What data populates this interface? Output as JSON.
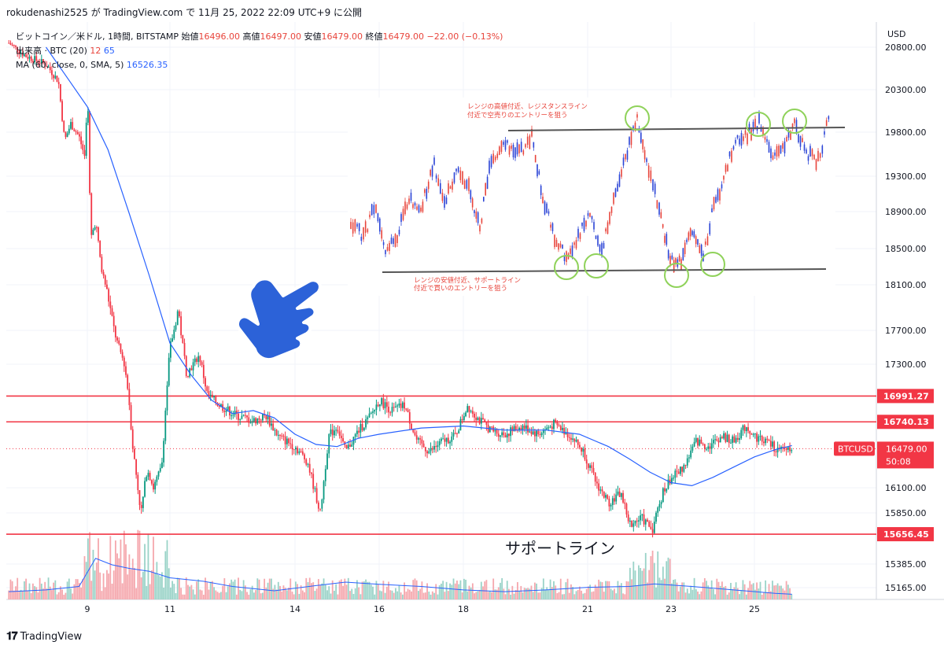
{
  "topbar": {
    "text": "rokudenashi2525 が TradingView.com で 11月 25, 2022 22:09 UTC+9 に公開"
  },
  "legend": {
    "line1": {
      "symbol": "ビットコイン／米ドル, 1時間, BITSTAMP",
      "open_label": "始値",
      "open": "16496.00",
      "high_label": "高値",
      "high": "16497.00",
      "low_label": "安値",
      "low": "16479.00",
      "close_label": "終値",
      "close": "16479.00",
      "change": "−22.00 (−0.13%)"
    },
    "line2": {
      "label": "出来高 · BTC (20)",
      "v1": "12",
      "v2": "65"
    },
    "line3": {
      "label": "MA (60, close, 0, SMA, 5)",
      "value": "16526.35"
    }
  },
  "footer": {
    "brand": "TradingView"
  },
  "chart_data": {
    "type": "candlestick",
    "symbol": "BTCUSD",
    "currency": "USD",
    "ylim": [
      15050,
      21000
    ],
    "y_ticks": [
      20800,
      20300,
      19800,
      19300,
      18900,
      18500,
      18100,
      17700,
      17300,
      16100,
      15850,
      15385,
      15165
    ],
    "x_ticks": [
      {
        "label": "9",
        "day": 9
      },
      {
        "label": "11",
        "day": 11
      },
      {
        "label": "14",
        "day": 14
      },
      {
        "label": "16",
        "day": 16
      },
      {
        "label": "18",
        "day": 18
      },
      {
        "label": "21",
        "day": 21
      },
      {
        "label": "23",
        "day": 23
      },
      {
        "label": "25",
        "day": 25
      }
    ],
    "horizontal_lines": [
      {
        "value": 16991.27,
        "label": "16991.27",
        "color": "#f23645"
      },
      {
        "value": 16740.13,
        "label": "16740.13",
        "color": "#f23645"
      },
      {
        "value": 15656.45,
        "label": "15656.45",
        "color": "#f23645"
      }
    ],
    "current_price": {
      "symbol": "BTCUSD",
      "price": "16479.00",
      "countdown": "50:08",
      "value": 16479
    },
    "annotation_text": "サポートライン",
    "price_path": [
      [
        7.1,
        20850
      ],
      [
        7.5,
        20700
      ],
      [
        8.0,
        20600
      ],
      [
        8.3,
        20400
      ],
      [
        8.45,
        19700
      ],
      [
        8.6,
        19900
      ],
      [
        8.8,
        19750
      ],
      [
        8.95,
        19500
      ],
      [
        9.0,
        20400
      ],
      [
        9.08,
        18600
      ],
      [
        9.2,
        18800
      ],
      [
        9.35,
        18250
      ],
      [
        9.5,
        18000
      ],
      [
        9.7,
        17600
      ],
      [
        9.9,
        17300
      ],
      [
        10.0,
        17000
      ],
      [
        10.1,
        16500
      ],
      [
        10.3,
        15850
      ],
      [
        10.45,
        16300
      ],
      [
        10.6,
        16100
      ],
      [
        10.8,
        16300
      ],
      [
        11.0,
        17500
      ],
      [
        11.2,
        17900
      ],
      [
        11.4,
        17200
      ],
      [
        11.7,
        17400
      ],
      [
        11.9,
        17000
      ],
      [
        12.2,
        16900
      ],
      [
        12.6,
        16800
      ],
      [
        13.0,
        16750
      ],
      [
        13.3,
        16800
      ],
      [
        13.6,
        16600
      ],
      [
        14.0,
        16500
      ],
      [
        14.3,
        16350
      ],
      [
        14.6,
        15850
      ],
      [
        14.8,
        16600
      ],
      [
        15.0,
        16700
      ],
      [
        15.2,
        16450
      ],
      [
        15.5,
        16650
      ],
      [
        15.8,
        16800
      ],
      [
        16.0,
        16950
      ],
      [
        16.3,
        16850
      ],
      [
        16.6,
        16900
      ],
      [
        16.9,
        16550
      ],
      [
        17.2,
        16450
      ],
      [
        17.5,
        16550
      ],
      [
        17.8,
        16600
      ],
      [
        18.1,
        16900
      ],
      [
        18.4,
        16750
      ],
      [
        18.7,
        16650
      ],
      [
        19.0,
        16620
      ],
      [
        19.4,
        16700
      ],
      [
        19.8,
        16620
      ],
      [
        20.2,
        16720
      ],
      [
        20.6,
        16600
      ],
      [
        20.9,
        16450
      ],
      [
        21.2,
        16150
      ],
      [
        21.5,
        15950
      ],
      [
        21.8,
        16050
      ],
      [
        22.0,
        15750
      ],
      [
        22.3,
        15800
      ],
      [
        22.55,
        15700
      ],
      [
        22.8,
        16050
      ],
      [
        23.0,
        16200
      ],
      [
        23.3,
        16300
      ],
      [
        23.6,
        16550
      ],
      [
        23.9,
        16500
      ],
      [
        24.2,
        16600
      ],
      [
        24.5,
        16550
      ],
      [
        24.8,
        16700
      ],
      [
        25.0,
        16600
      ],
      [
        25.3,
        16550
      ],
      [
        25.6,
        16450
      ],
      [
        25.9,
        16500
      ]
    ],
    "ma_path": [
      [
        8.0,
        20800
      ],
      [
        8.5,
        20450
      ],
      [
        9.0,
        20100
      ],
      [
        9.5,
        19600
      ],
      [
        10.0,
        18900
      ],
      [
        10.5,
        18200
      ],
      [
        11.0,
        17550
      ],
      [
        11.5,
        17200
      ],
      [
        12.0,
        16950
      ],
      [
        12.5,
        16820
      ],
      [
        13.0,
        16850
      ],
      [
        13.5,
        16780
      ],
      [
        14.0,
        16620
      ],
      [
        14.5,
        16520
      ],
      [
        15.0,
        16500
      ],
      [
        15.5,
        16580
      ],
      [
        16.0,
        16620
      ],
      [
        17.0,
        16680
      ],
      [
        18.0,
        16700
      ],
      [
        19.0,
        16660
      ],
      [
        20.0,
        16660
      ],
      [
        20.8,
        16620
      ],
      [
        21.5,
        16500
      ],
      [
        22.0,
        16380
      ],
      [
        22.5,
        16250
      ],
      [
        23.0,
        16150
      ],
      [
        23.5,
        16120
      ],
      [
        24.0,
        16200
      ],
      [
        24.5,
        16300
      ],
      [
        25.0,
        16400
      ],
      [
        25.5,
        16470
      ],
      [
        25.9,
        16510
      ]
    ],
    "volume_ma_path": [
      [
        7.1,
        0.18
      ],
      [
        8.0,
        0.22
      ],
      [
        8.8,
        0.3
      ],
      [
        9.2,
        0.95
      ],
      [
        9.6,
        0.8
      ],
      [
        10.0,
        0.72
      ],
      [
        10.5,
        0.65
      ],
      [
        11.0,
        0.5
      ],
      [
        11.8,
        0.42
      ],
      [
        12.5,
        0.3
      ],
      [
        13.5,
        0.2
      ],
      [
        14.5,
        0.32
      ],
      [
        15.2,
        0.4
      ],
      [
        16.0,
        0.35
      ],
      [
        17.0,
        0.3
      ],
      [
        18.0,
        0.22
      ],
      [
        19.0,
        0.18
      ],
      [
        20.0,
        0.22
      ],
      [
        21.0,
        0.28
      ],
      [
        22.0,
        0.3
      ],
      [
        22.6,
        0.36
      ],
      [
        23.5,
        0.3
      ],
      [
        24.5,
        0.22
      ],
      [
        25.5,
        0.14
      ],
      [
        25.9,
        0.12
      ]
    ],
    "inset": {
      "description_top": "レンジの高値付近、レジスタンスライン\n付近で空売りのエントリーを狙う",
      "description_bottom": "レンジの安値付近、サポートライン\n付近で買いのエントリーを狙う"
    }
  }
}
